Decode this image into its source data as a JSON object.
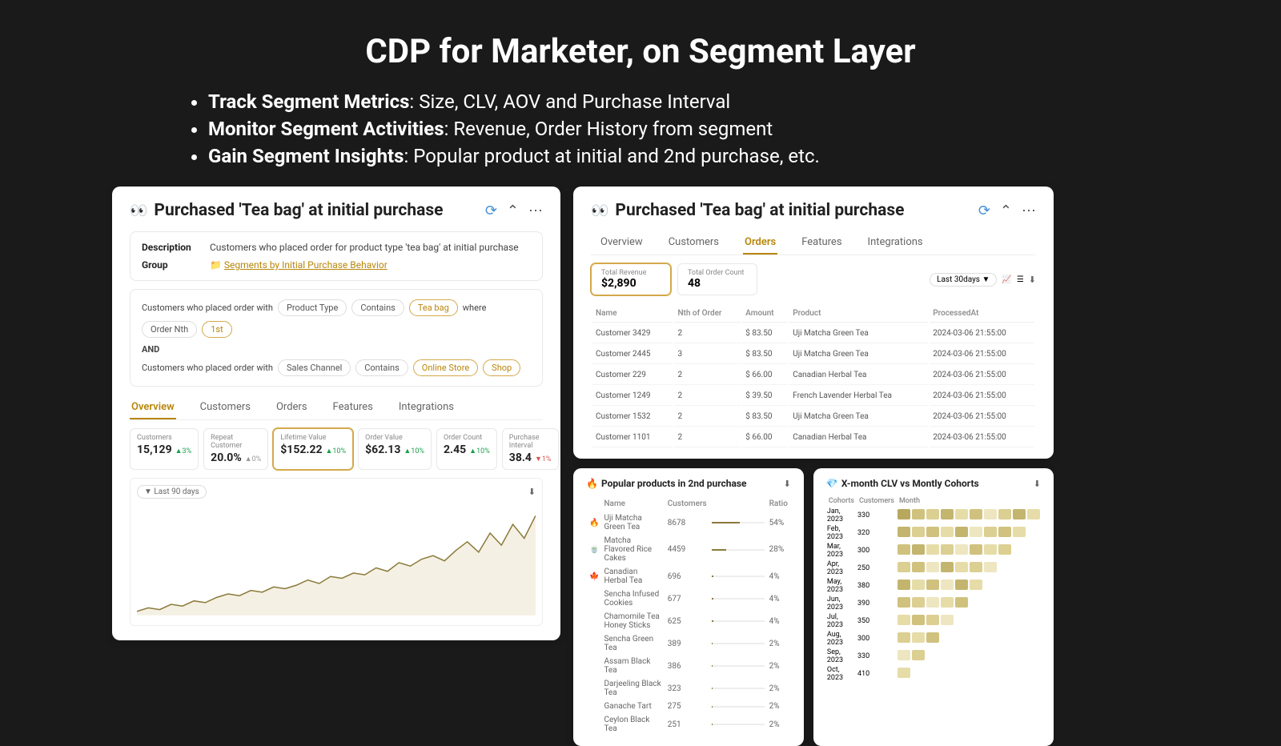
{
  "title": "CDP for Marketer, on Segment Layer",
  "bullets": [
    {
      "bold": "Track Segment Metrics",
      "rest": ": Size, CLV, AOV and Purchase Interval"
    },
    {
      "bold": "Monitor Segment Activities",
      "rest": ": Revenue, Order History from segment"
    },
    {
      "bold": "Gain Segment Insights",
      "rest": ": Popular product at initial and 2nd purchase, etc."
    }
  ],
  "segment_title": "Purchased 'Tea bag' at initial purchase",
  "desc": {
    "desc_label": "Description",
    "desc_val": "Customers who placed order for product type 'tea bag' at initial purchase",
    "group_label": "Group",
    "group_val": "Segments by Initial Purchase Behavior"
  },
  "filters": {
    "line1_text": "Customers who placed order with",
    "line1_chips": [
      "Product Type",
      "Contains",
      "Tea bag"
    ],
    "line1_where": "where",
    "line1_chips2": [
      "Order Nth",
      "1st"
    ],
    "and": "AND",
    "line2_text": "Customers who placed order with",
    "line2_chips": [
      "Sales Channel",
      "Contains",
      "Online Store",
      "Shop"
    ]
  },
  "tabs": [
    "Overview",
    "Customers",
    "Orders",
    "Features",
    "Integrations"
  ],
  "active_tab_left": "Overview",
  "active_tab_right": "Orders",
  "metrics": [
    {
      "label": "Customers",
      "val": "15,129",
      "delta": "▲3%",
      "dir": "up"
    },
    {
      "label": "Repeat Customer",
      "val": "20.0%",
      "delta": "▲0%",
      "dir": "neutral"
    },
    {
      "label": "Lifetime Value",
      "val": "$152.22",
      "delta": "▲10%",
      "dir": "up",
      "sel": true
    },
    {
      "label": "Order Value",
      "val": "$62.13",
      "delta": "▲10%",
      "dir": "up"
    },
    {
      "label": "Order Count",
      "val": "2.45",
      "delta": "▲10%",
      "dir": "up"
    },
    {
      "label": "Purchase Interval",
      "val": "38.4",
      "delta": "▼1%",
      "dir": "down"
    }
  ],
  "chart_period": "▼ Last 90 days",
  "chart": {
    "points": [
      10,
      12,
      11,
      14,
      13,
      16,
      15,
      18,
      20,
      19,
      22,
      21,
      24,
      23,
      25,
      28,
      26,
      30,
      29,
      32,
      31,
      35,
      33,
      38,
      36,
      40,
      42,
      39,
      45,
      50,
      44,
      55,
      48,
      60,
      52,
      65
    ],
    "stroke": "#8a7a3a",
    "fill": "#f5f0e4"
  },
  "summary": [
    {
      "label": "Total Revenue",
      "val": "$2,890",
      "sel": true
    },
    {
      "label": "Total Order Count",
      "val": "48"
    }
  ],
  "period_right": "Last 30days ▼",
  "orders": {
    "cols": [
      "Name",
      "Nth of Order",
      "Amount",
      "Product",
      "ProcessedAt"
    ],
    "rows": [
      [
        "Customer 3429",
        "2",
        "$ 83.50",
        "Uji Matcha Green Tea",
        "2024-03-06 21:55:00"
      ],
      [
        "Customer 2445",
        "3",
        "$ 83.50",
        "Uji Matcha Green Tea",
        "2024-03-06 21:55:00"
      ],
      [
        "Customer 229",
        "2",
        "$ 66.00",
        "Canadian Herbal Tea",
        "2024-03-06 21:55:00"
      ],
      [
        "Customer 1249",
        "2",
        "$ 39.50",
        "French Lavender Herbal Tea",
        "2024-03-06 21:55:00"
      ],
      [
        "Customer 1532",
        "2",
        "$ 83.50",
        "Uji Matcha Green Tea",
        "2024-03-06 21:55:00"
      ],
      [
        "Customer 1101",
        "2",
        "$ 66.00",
        "Canadian Herbal Tea",
        "2024-03-06 21:55:00"
      ]
    ]
  },
  "popular": {
    "title": "Popular products in 2nd purchase",
    "cols": [
      "Name",
      "Customers",
      "Ratio"
    ],
    "icons": [
      "🔥",
      "🍵",
      "🍁",
      "",
      "",
      "",
      "",
      "",
      "",
      ""
    ],
    "rows": [
      [
        "Uji Matcha Green Tea",
        "8678",
        54
      ],
      [
        "Matcha Flavored Rice Cakes",
        "4459",
        28
      ],
      [
        "Canadian Herbal Tea",
        "696",
        4
      ],
      [
        "Sencha Infused Cookies",
        "677",
        4
      ],
      [
        "Chamomile Tea Honey Sticks",
        "625",
        4
      ],
      [
        "Sencha Green Tea",
        "389",
        2
      ],
      [
        "Assam Black Tea",
        "386",
        2
      ],
      [
        "Darjeeling Black Tea",
        "323",
        2
      ],
      [
        "Ganache Tart",
        "275",
        2
      ],
      [
        "Ceylon Black Tea",
        "251",
        2
      ]
    ]
  },
  "cohort": {
    "title": "X-month CLV vs Montly Cohorts",
    "cols": [
      "Cohorts",
      "Customers",
      "Month"
    ],
    "months": [
      "Jan, 2023",
      "Feb, 2023",
      "Mar, 2023",
      "Apr, 2023",
      "May, 2023",
      "Jun, 2023",
      "Jul, 2023",
      "Aug, 2023",
      "Sep, 2023",
      "Oct, 2023"
    ],
    "customers": [
      "330",
      "320",
      "300",
      "250",
      "380",
      "390",
      "350",
      "300",
      "330",
      "410"
    ],
    "colors": [
      "#b8a85e",
      "#c4b56e",
      "#d0c27e",
      "#dccf92",
      "#e6dca8",
      "#ede6c0",
      "#f2edd2",
      "#f7f3e2"
    ],
    "cells": [
      [
        0,
        2,
        3,
        1,
        4,
        2,
        5,
        3,
        1,
        4
      ],
      [
        1,
        3,
        2,
        4,
        1,
        5,
        3,
        2,
        4
      ],
      [
        2,
        1,
        4,
        3,
        5,
        2,
        4,
        3
      ],
      [
        3,
        2,
        5,
        1,
        4,
        3,
        5
      ],
      [
        1,
        4,
        2,
        5,
        1,
        4
      ],
      [
        2,
        3,
        5,
        4,
        2
      ],
      [
        4,
        2,
        3,
        5
      ],
      [
        3,
        4,
        2
      ],
      [
        5,
        3
      ],
      [
        4
      ]
    ]
  }
}
